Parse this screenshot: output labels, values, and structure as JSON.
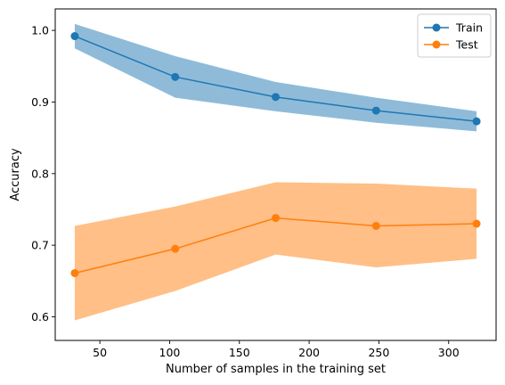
{
  "chart_data": {
    "type": "line",
    "title": "",
    "xlabel": "Number of samples in the training set",
    "ylabel": "Accuracy",
    "xlim": [
      18,
      334
    ],
    "ylim": [
      0.567,
      1.03
    ],
    "xticks": [
      50,
      100,
      150,
      200,
      250,
      300
    ],
    "yticks": [
      0.6,
      0.7,
      0.8,
      0.9,
      1.0
    ],
    "ytick_labels": [
      "0.6",
      "0.7",
      "0.8",
      "0.9",
      "1.0"
    ],
    "grid": false,
    "legend_position": "top-right",
    "x": [
      32,
      104,
      176,
      248,
      320
    ],
    "series": [
      {
        "name": "Train",
        "color": "#1f77b4",
        "band_color": "#1f77b4",
        "values": [
          0.992,
          0.935,
          0.907,
          0.888,
          0.873
        ],
        "lower": [
          0.975,
          0.906,
          0.887,
          0.871,
          0.859
        ],
        "upper": [
          1.009,
          0.964,
          0.928,
          0.906,
          0.887
        ]
      },
      {
        "name": "Test",
        "color": "#ff7f0e",
        "band_color": "#ff7f0e",
        "values": [
          0.661,
          0.695,
          0.738,
          0.727,
          0.73
        ],
        "lower": [
          0.595,
          0.636,
          0.687,
          0.669,
          0.681
        ],
        "upper": [
          0.727,
          0.754,
          0.788,
          0.786,
          0.779
        ]
      }
    ]
  }
}
